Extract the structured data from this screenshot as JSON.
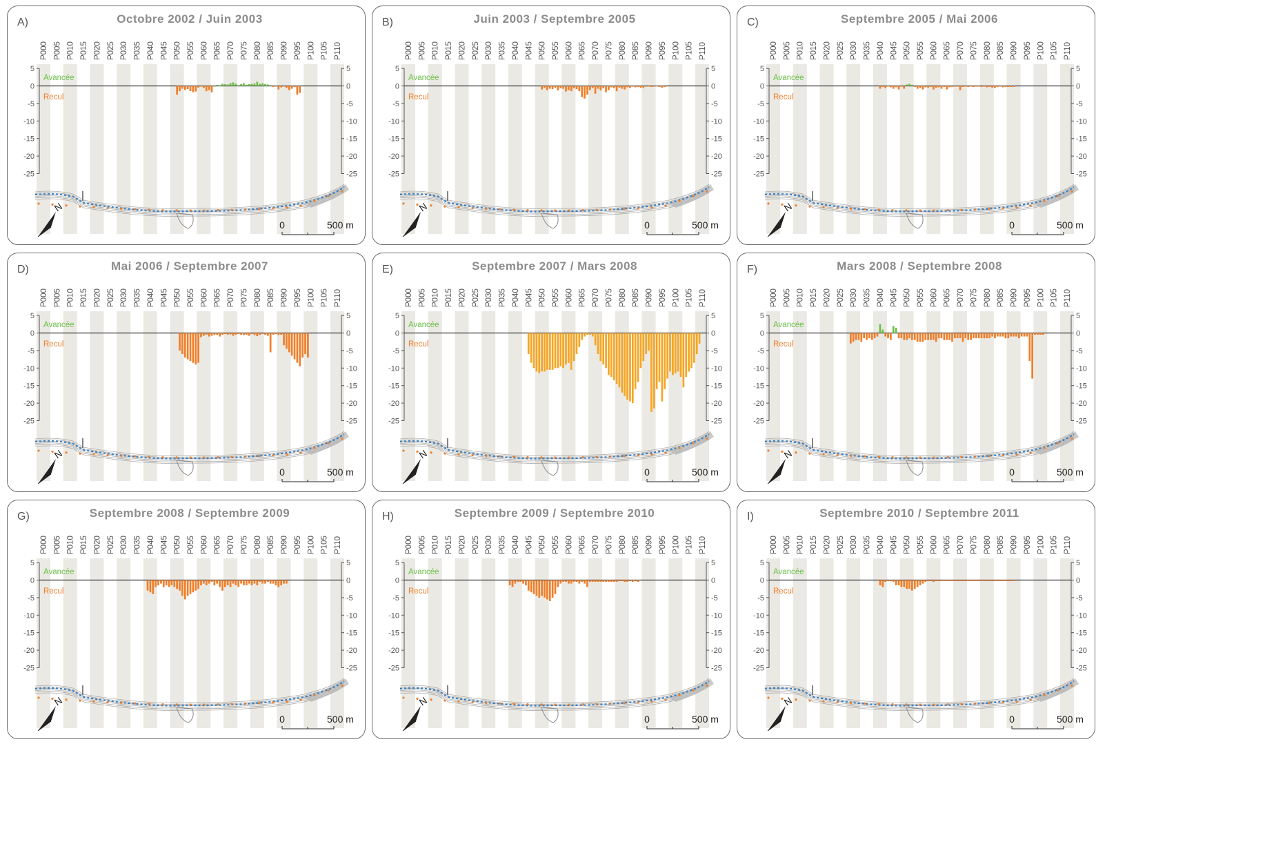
{
  "figure": {
    "profiles": [
      "P000",
      "P005",
      "P010",
      "P015",
      "P020",
      "P025",
      "P030",
      "P035",
      "P040",
      "P045",
      "P050",
      "P055",
      "P060",
      "P065",
      "P070",
      "P075",
      "P080",
      "P085",
      "P090",
      "P095",
      "P100",
      "P105",
      "P110"
    ],
    "y_ticks": [
      "5",
      "0",
      "-5",
      "-10",
      "-15",
      "-20",
      "-25"
    ],
    "advance_label": "Avancée",
    "retreat_label": "Recul",
    "scale_zero": "0",
    "scale_end": "500 m",
    "north": "N"
  },
  "colors": {
    "advance": "#6cc04a",
    "retreat_orange": "#f07f2a",
    "retreat_amber": "#f5a623",
    "band": "#ebe9e4",
    "coast_line": "#3a7fc0",
    "frame": "#6a6a6a"
  },
  "chart_data": [
    {
      "type": "bar",
      "letter": "A)",
      "title": "Octobre 2002 / Juin 2003",
      "ylim": [
        -25,
        5
      ],
      "categories": [
        "P050",
        "P051",
        "P052",
        "P053",
        "P054",
        "P055",
        "P056",
        "P057",
        "P058",
        "P059",
        "P060",
        "P061",
        "P062",
        "P063",
        "P064",
        "P065",
        "P066",
        "P067",
        "P068",
        "P069",
        "P070",
        "P071",
        "P072",
        "P073",
        "P074",
        "P075",
        "P076",
        "P077",
        "P078",
        "P079",
        "P080",
        "P081",
        "P082",
        "P083",
        "P084",
        "P085",
        "P086",
        "P087",
        "P088",
        "P089",
        "P090",
        "P091",
        "P092",
        "P093",
        "P094",
        "P095",
        "P096"
      ],
      "values": [
        -2.5,
        -1.5,
        -0.8,
        -1.2,
        -0.9,
        -1.5,
        -1.8,
        -1.6,
        -0.5,
        -0.2,
        -0.6,
        -1.5,
        -1.2,
        -1.8,
        -0.2,
        0.3,
        0.2,
        0.6,
        0.5,
        0.4,
        0.8,
        1,
        0.6,
        0.2,
        0.5,
        0.8,
        0.3,
        0.5,
        0.6,
        0.7,
        1.2,
        0.6,
        0.8,
        0.5,
        0.4,
        0.2,
        -0.3,
        -0.2,
        -1,
        -0.4,
        -0.2,
        -0.6,
        -1.2,
        -0.8,
        -0.3,
        -2.5,
        -2
      ]
    },
    {
      "type": "bar",
      "letter": "B)",
      "title": "Juin 2003 / Septembre 2005",
      "ylim": [
        -25,
        5
      ],
      "categories": [
        "P050",
        "P051",
        "P052",
        "P053",
        "P054",
        "P055",
        "P056",
        "P057",
        "P058",
        "P059",
        "P060",
        "P061",
        "P062",
        "P063",
        "P064",
        "P065",
        "P066",
        "P067",
        "P068",
        "P069",
        "P070",
        "P071",
        "P072",
        "P073",
        "P074",
        "P075",
        "P076",
        "P077",
        "P078",
        "P079",
        "P080",
        "P081",
        "P082",
        "P083",
        "P084",
        "P085",
        "P086",
        "P087",
        "P088",
        "P089",
        "P090",
        "P091",
        "P092",
        "P093",
        "P094",
        "P095",
        "P096"
      ],
      "values": [
        -1,
        -0.6,
        -1.2,
        -0.8,
        -0.9,
        -0.5,
        -1.3,
        -0.7,
        -0.8,
        -1.6,
        -1.2,
        -1.5,
        -0.7,
        -0.9,
        -1.5,
        -3.2,
        -3.6,
        -2.5,
        -1.2,
        -0.6,
        -2.2,
        -0.8,
        -1.3,
        -0.7,
        -1.8,
        -1.2,
        -0.4,
        -0.6,
        -1.5,
        -0.5,
        -0.8,
        -1,
        -0.4,
        -0.6,
        -0.2,
        -0.4,
        -0.3,
        -0.5,
        -0.6,
        -0.2,
        -0.2,
        -0.3,
        -0.2,
        -0.1,
        -0.3,
        -0.5,
        -0.3
      ]
    },
    {
      "type": "bar",
      "letter": "C)",
      "title": "Septembre 2005 / Mai 2006",
      "ylim": [
        -25,
        5
      ],
      "categories": [
        "P040",
        "P041",
        "P042",
        "P043",
        "P044",
        "P045",
        "P046",
        "P047",
        "P048",
        "P049",
        "P050",
        "P051",
        "P052",
        "P053",
        "P054",
        "P055",
        "P056",
        "P057",
        "P058",
        "P059",
        "P060",
        "P061",
        "P062",
        "P063",
        "P064",
        "P065",
        "P066",
        "P067",
        "P068",
        "P069",
        "P070",
        "P071",
        "P072",
        "P073",
        "P074",
        "P075",
        "P076",
        "P077",
        "P078",
        "P079",
        "P080",
        "P081",
        "P082",
        "P083",
        "P084",
        "P085",
        "P086",
        "P087",
        "P088",
        "P089",
        "P090"
      ],
      "values": [
        -0.8,
        -0.3,
        -0.6,
        -0.2,
        -0.4,
        -0.8,
        -0.4,
        -1,
        -0.2,
        -0.8,
        0.4,
        0.6,
        0.3,
        -0.3,
        -0.8,
        -0.6,
        -1,
        -0.4,
        -0.5,
        -0.3,
        -1,
        -0.5,
        -0.4,
        -0.8,
        -0.3,
        -1,
        -0.4,
        -0.3,
        -0.2,
        -0.2,
        -1.2,
        -0.3,
        -0.2,
        -0.3,
        -0.2,
        -0.3,
        -0.2,
        -0.2,
        -0.3,
        -0.2,
        -0.4,
        -0.3,
        -0.5,
        -0.6,
        -0.3,
        -0.2,
        -0.4,
        -0.3,
        -0.3,
        -0.3,
        -0.3
      ]
    },
    {
      "type": "bar",
      "letter": "D)",
      "title": "Mai 2006 / Septembre 2007",
      "ylim": [
        -25,
        5
      ],
      "categories": [
        "P051",
        "P052",
        "P053",
        "P054",
        "P055",
        "P056",
        "P057",
        "P058",
        "P059",
        "P060",
        "P061",
        "P062",
        "P063",
        "P064",
        "P065",
        "P066",
        "P067",
        "P068",
        "P069",
        "P070",
        "P071",
        "P072",
        "P073",
        "P074",
        "P075",
        "P076",
        "P077",
        "P078",
        "P079",
        "P080",
        "P081",
        "P082",
        "P083",
        "P084",
        "P085",
        "P086",
        "P087",
        "P088",
        "P089",
        "P090",
        "P091",
        "P092",
        "P093",
        "P094",
        "P095",
        "P096",
        "P097",
        "P098",
        "P099"
      ],
      "values": [
        -5,
        -6,
        -7,
        -7.5,
        -8,
        -8.5,
        -9,
        -8.5,
        -1.2,
        -0.8,
        -0.5,
        -1,
        -0.8,
        -0.6,
        -0.5,
        -1,
        -0.5,
        -0.3,
        -0.5,
        -0.4,
        -0.8,
        -0.5,
        -0.3,
        -0.5,
        -0.6,
        -0.5,
        -0.8,
        -0.3,
        -0.6,
        -0.9,
        -0.5,
        -0.3,
        -0.5,
        -0.8,
        -5.5,
        -0.5,
        -0.3,
        -0.6,
        -0.5,
        -3.5,
        -4.5,
        -5.5,
        -6.5,
        -7.5,
        -8.5,
        -9.5,
        -7,
        -6,
        -7
      ]
    },
    {
      "type": "bar",
      "letter": "E)",
      "title": "Septembre 2007 / Mars 2008",
      "ylim": [
        -25,
        5
      ],
      "categories": [
        "P045",
        "P046",
        "P047",
        "P048",
        "P049",
        "P050",
        "P051",
        "P052",
        "P053",
        "P054",
        "P055",
        "P056",
        "P057",
        "P058",
        "P059",
        "P060",
        "P061",
        "P062",
        "P063",
        "P064",
        "P065",
        "P066",
        "P067",
        "P068",
        "P069",
        "P070",
        "P071",
        "P072",
        "P073",
        "P074",
        "P075",
        "P076",
        "P077",
        "P078",
        "P079",
        "P080",
        "P081",
        "P082",
        "P083",
        "P084",
        "P085",
        "P086",
        "P087",
        "P088",
        "P089",
        "P090",
        "P091",
        "P092",
        "P093",
        "P094",
        "P095",
        "P096",
        "P097",
        "P098",
        "P099",
        "P100",
        "P101",
        "P102",
        "P103",
        "P104",
        "P105",
        "P106",
        "P107",
        "P108",
        "P109"
      ],
      "values": [
        -6,
        -8.5,
        -10,
        -11,
        -11.5,
        -11,
        -11,
        -10.5,
        -10.5,
        -10.5,
        -10,
        -10,
        -9.5,
        -10,
        -9,
        -8.5,
        -10.5,
        -8,
        -6,
        -4,
        -2,
        -1,
        -0.5,
        -0.5,
        -1,
        -3.5,
        -6,
        -8,
        -9,
        -10,
        -12,
        -12.5,
        -13.5,
        -14.5,
        -15.5,
        -17,
        -18,
        -19,
        -19.5,
        -20,
        -16,
        -14,
        -10,
        -8,
        -6,
        -5,
        -22.5,
        -21.5,
        -16,
        -14,
        -19.5,
        -16,
        -13,
        -11,
        -12,
        -11.5,
        -11,
        -12.5,
        -15.5,
        -12.5,
        -11,
        -10,
        -8.5,
        -6,
        -3
      ]
    },
    {
      "type": "bar",
      "letter": "F)",
      "title": "Mars 2008 / Septembre 2008",
      "ylim": [
        -25,
        5
      ],
      "categories": [
        "P029",
        "P030",
        "P031",
        "P032",
        "P033",
        "P034",
        "P035",
        "P036",
        "P037",
        "P038",
        "P039",
        "P040",
        "P041",
        "P042",
        "P043",
        "P044",
        "P045",
        "P046",
        "P047",
        "P048",
        "P049",
        "P050",
        "P051",
        "P052",
        "P053",
        "P054",
        "P055",
        "P056",
        "P057",
        "P058",
        "P059",
        "P060",
        "P061",
        "P062",
        "P063",
        "P064",
        "P065",
        "P066",
        "P067",
        "P068",
        "P069",
        "P070",
        "P071",
        "P072",
        "P073",
        "P074",
        "P075",
        "P076",
        "P077",
        "P078",
        "P079",
        "P080",
        "P081",
        "P082",
        "P083",
        "P084",
        "P085",
        "P086",
        "P087",
        "P088",
        "P089",
        "P090",
        "P091",
        "P092",
        "P093",
        "P094",
        "P095",
        "P096",
        "P097",
        "P098",
        "P099",
        "P100",
        "P101"
      ],
      "values": [
        -3,
        -2.5,
        -2,
        -2,
        -2.5,
        -1.5,
        -2,
        -1.5,
        -2,
        -1.5,
        -1,
        2.5,
        1,
        -1,
        -1.5,
        -2,
        2,
        1.5,
        -1.5,
        -1.5,
        -2,
        -2,
        -1.5,
        -2,
        -2,
        -2.5,
        -2.5,
        -2.5,
        -2,
        -2,
        -2,
        -2,
        -2.5,
        -1.5,
        -1.5,
        -2,
        -2,
        -2,
        -2.5,
        -1.5,
        -1.5,
        -1.5,
        -2.5,
        -1.5,
        -2,
        -2,
        -1.5,
        -1.5,
        -1.5,
        -1.5,
        -1.5,
        -1.5,
        -1.5,
        -1,
        -1.5,
        -1,
        -1,
        -1,
        -1.5,
        -1.5,
        -1,
        -1,
        -1,
        -1.5,
        -1,
        -1,
        -1,
        -8,
        -13,
        -0.5,
        -0.5,
        -0.5,
        -0.5
      ]
    },
    {
      "type": "bar",
      "letter": "G)",
      "title": "Septembre 2008 / Septembre 2009",
      "ylim": [
        -25,
        5
      ],
      "categories": [
        "P039",
        "P040",
        "P041",
        "P042",
        "P043",
        "P044",
        "P045",
        "P046",
        "P047",
        "P048",
        "P049",
        "P050",
        "P051",
        "P052",
        "P053",
        "P054",
        "P055",
        "P056",
        "P057",
        "P058",
        "P059",
        "P060",
        "P061",
        "P062",
        "P063",
        "P064",
        "P065",
        "P066",
        "P067",
        "P068",
        "P069",
        "P070",
        "P071",
        "P072",
        "P073",
        "P074",
        "P075",
        "P076",
        "P077",
        "P078",
        "P079",
        "P080",
        "P081",
        "P082",
        "P083",
        "P084",
        "P085",
        "P086",
        "P087",
        "P088",
        "P089",
        "P090",
        "P091"
      ],
      "values": [
        -3,
        -3.5,
        -4,
        -2,
        -1.5,
        -1,
        -2,
        -1.5,
        -2,
        -1.5,
        -2,
        -2.5,
        -3,
        -4.5,
        -5.5,
        -4.5,
        -4,
        -3.5,
        -3,
        -2.5,
        -1.5,
        -1,
        -1.5,
        -1,
        -0.5,
        -1.5,
        -1,
        -2,
        -3,
        -2,
        -1.5,
        -2,
        -1,
        -1.5,
        -2,
        -1,
        -1.5,
        -1.5,
        -1,
        -1.5,
        -1,
        -1.5,
        -0.5,
        -1,
        -1,
        -0.5,
        -1,
        -1,
        -1.5,
        -2,
        -1.5,
        -1,
        -1
      ]
    },
    {
      "type": "bar",
      "letter": "H)",
      "title": "Septembre 2009 / Septembre 2010",
      "ylim": [
        -25,
        5
      ],
      "categories": [
        "P038",
        "P039",
        "P040",
        "P041",
        "P042",
        "P043",
        "P044",
        "P045",
        "P046",
        "P047",
        "P048",
        "P049",
        "P050",
        "P051",
        "P052",
        "P053",
        "P054",
        "P055",
        "P056",
        "P057",
        "P058",
        "P059",
        "P060",
        "P061",
        "P062",
        "P063",
        "P064",
        "P065",
        "P066",
        "P067",
        "P068",
        "P069",
        "P070",
        "P071",
        "P072",
        "P073",
        "P074",
        "P075",
        "P076",
        "P077",
        "P078",
        "P079",
        "P080",
        "P081",
        "P082",
        "P083",
        "P084",
        "P085",
        "P086"
      ],
      "values": [
        -1.5,
        -2,
        -1,
        -0.5,
        -0.5,
        -1,
        -1.5,
        -3,
        -3.5,
        -4,
        -4.5,
        -5,
        -4.5,
        -5,
        -5.5,
        -6,
        -5,
        -4,
        -2,
        -1,
        -0.5,
        -0.5,
        -1,
        -1,
        -0.5,
        -0.5,
        -1,
        -0.5,
        -1,
        -2,
        -0.5,
        -0.5,
        -0.5,
        -0.5,
        -0.5,
        -0.5,
        -0.5,
        -0.5,
        -0.5,
        -0.5,
        -0.5,
        -0.3,
        -0.3,
        -0.5,
        -0.5,
        -0.3,
        -0.5,
        -0.3,
        -0.5
      ]
    },
    {
      "type": "bar",
      "letter": "I)",
      "title": "Septembre 2010 / Septembre 2011",
      "ylim": [
        -25,
        5
      ],
      "categories": [
        "P040",
        "P041",
        "P042",
        "P043",
        "P044",
        "P045",
        "P046",
        "P047",
        "P048",
        "P049",
        "P050",
        "P051",
        "P052",
        "P053",
        "P054",
        "P055",
        "P056",
        "P057",
        "P058",
        "P059",
        "P060",
        "P061",
        "P062",
        "P063",
        "P064",
        "P065",
        "P066",
        "P067",
        "P068",
        "P069",
        "P070",
        "P071",
        "P072",
        "P073",
        "P074",
        "P075",
        "P076",
        "P077",
        "P078",
        "P079",
        "P080",
        "P081",
        "P082",
        "P083",
        "P084",
        "P085",
        "P086",
        "P087",
        "P088",
        "P089",
        "P090"
      ],
      "values": [
        -1.5,
        -2,
        -0.5,
        -0.3,
        -0.3,
        -0.5,
        -1.5,
        -1.5,
        -2,
        -2,
        -2.5,
        -2.5,
        -3,
        -2.5,
        -2,
        -1.5,
        -1,
        -0.5,
        -0.3,
        -0.3,
        -0.5,
        -0.3,
        -0.3,
        -0.3,
        -0.3,
        -0.3,
        -0.3,
        -0.3,
        -0.3,
        -0.3,
        -0.3,
        -0.3,
        -0.3,
        -0.3,
        -0.3,
        -0.3,
        -0.3,
        -0.3,
        -0.3,
        -0.3,
        -0.3,
        -0.3,
        -0.3,
        -0.3,
        -0.3,
        -0.3,
        -0.3,
        -0.3,
        -0.3,
        -0.3,
        -0.3
      ]
    }
  ]
}
